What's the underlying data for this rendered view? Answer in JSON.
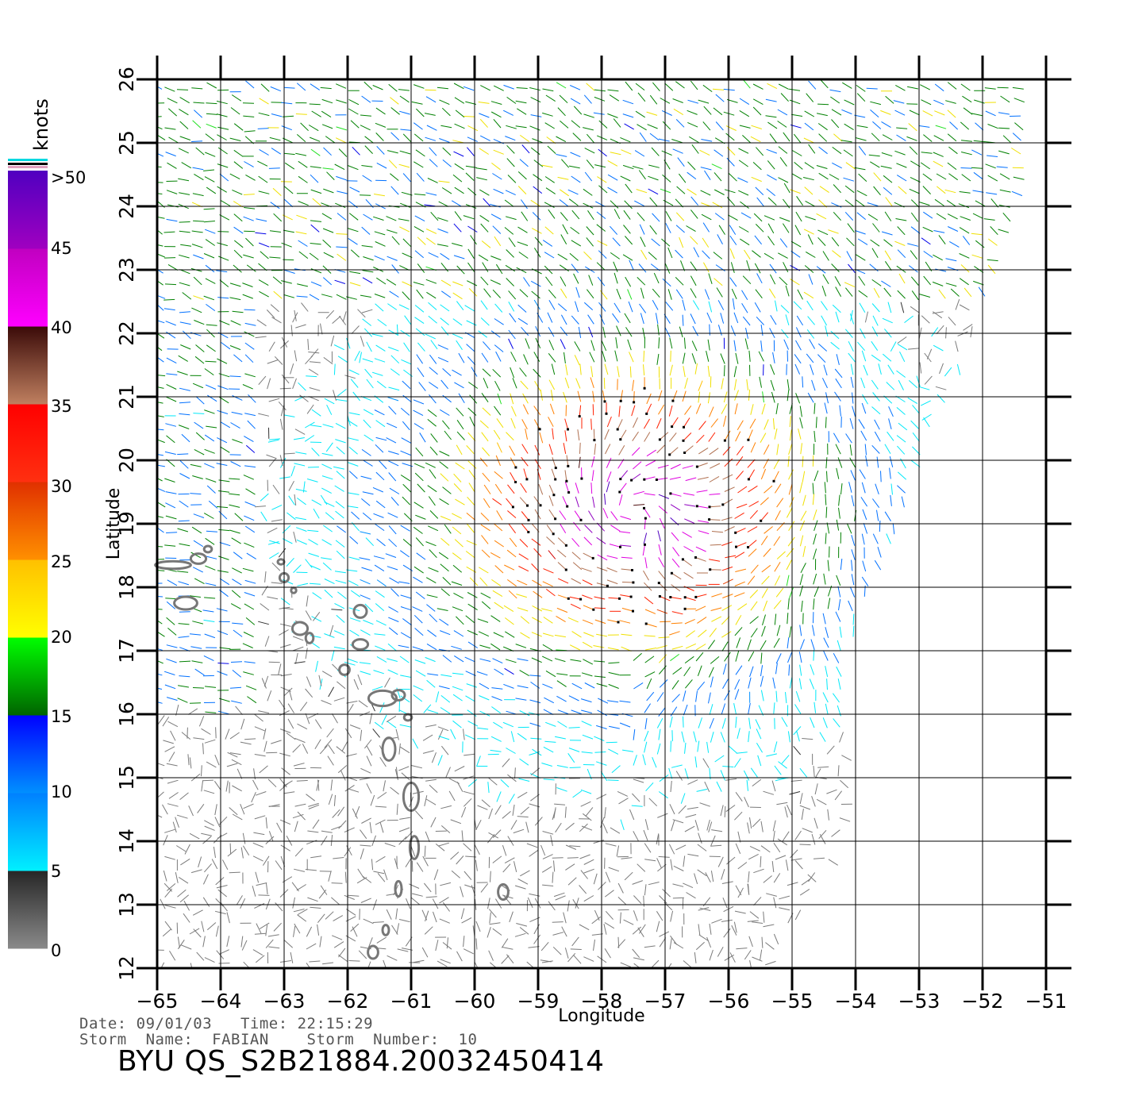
{
  "map": {
    "lon_range": [
      -65,
      -51
    ],
    "lat_range": [
      12,
      26
    ],
    "x_ticks": [
      "−65",
      "−64",
      "−63",
      "−62",
      "−61",
      "−60",
      "−59",
      "−58",
      "−57",
      "−56",
      "−55",
      "−54",
      "−53",
      "−52",
      "−51"
    ],
    "y_ticks": [
      "12",
      "13",
      "14",
      "15",
      "16",
      "17",
      "18",
      "19",
      "20",
      "21",
      "22",
      "23",
      "24",
      "25",
      "26"
    ],
    "xlabel": "Longitude",
    "ylabel": "Latitude",
    "grid": true,
    "storm_center": {
      "lon": -57.5,
      "lat": 19.2
    }
  },
  "legend": {
    "title": "knots",
    "labels": [
      "0",
      "5",
      "10",
      "15",
      "20",
      "25",
      "30",
      "35",
      "40",
      "45",
      ">50"
    ],
    "bands": [
      {
        "from": 0,
        "to": 5,
        "colors": [
          "#8a8a8a",
          "#262626"
        ]
      },
      {
        "from": 5,
        "to": 10,
        "colors": [
          "#00f0ff",
          "#0080ff"
        ]
      },
      {
        "from": 10,
        "to": 15,
        "colors": [
          "#0090ff",
          "#0000ff"
        ]
      },
      {
        "from": 15,
        "to": 20,
        "colors": [
          "#006400",
          "#00ff00"
        ]
      },
      {
        "from": 20,
        "to": 25,
        "colors": [
          "#ffff00",
          "#ffc000"
        ]
      },
      {
        "from": 25,
        "to": 30,
        "colors": [
          "#ff9000",
          "#e03000"
        ]
      },
      {
        "from": 30,
        "to": 35,
        "colors": [
          "#ff3010",
          "#ff0000"
        ]
      },
      {
        "from": 35,
        "to": 40,
        "colors": [
          "#c08060",
          "#3a0a08"
        ]
      },
      {
        "from": 40,
        "to": 45,
        "colors": [
          "#ff00ff",
          "#c000c0"
        ]
      },
      {
        "from": 45,
        "to": 50,
        "colors": [
          "#a000c0",
          "#5000c0"
        ]
      }
    ]
  },
  "info": {
    "line1": "Date: 09/01/03   Time: 22:15:29",
    "line2": "Storm  Name:  FABIAN    Storm  Number:  10",
    "product": "BYU  QS_S2B21884.20032450414"
  }
}
